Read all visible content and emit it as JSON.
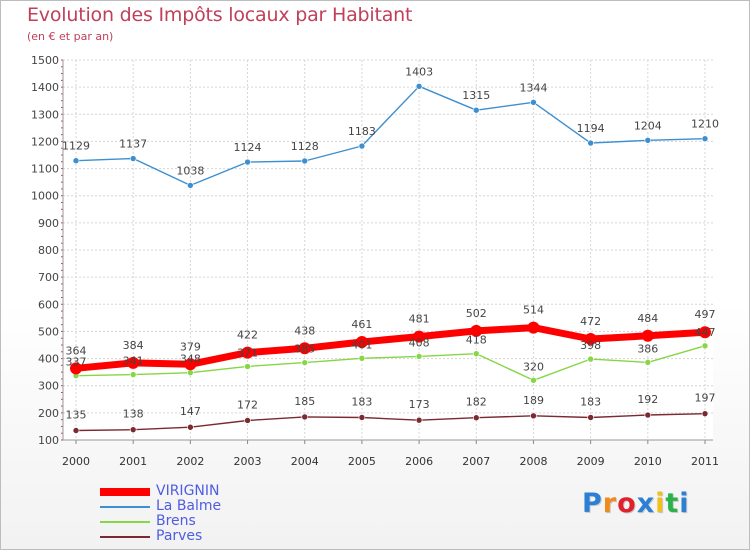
{
  "header": {
    "title": "Evolution des Impôts locaux par Habitant",
    "subtitle": "(en € et par an)"
  },
  "logo": {
    "letters": [
      "P",
      "r",
      "o",
      "x",
      "i",
      "t",
      "i"
    ],
    "colors": [
      "#2b7fd4",
      "#f08a1c",
      "#e0202a",
      "#2b7fd4",
      "#f0c020",
      "#2bb24a",
      "#2b7fd4"
    ]
  },
  "chart_data": {
    "type": "line",
    "x": [
      "2000",
      "2001",
      "2002",
      "2003",
      "2004",
      "2005",
      "2006",
      "2007",
      "2008",
      "2009",
      "2010",
      "2011"
    ],
    "ylim": [
      100,
      1500
    ],
    "yticks": [
      100,
      200,
      300,
      400,
      500,
      600,
      700,
      800,
      900,
      1000,
      1100,
      1200,
      1300,
      1400,
      1500
    ],
    "grid": true,
    "legend_position": "bottom-left",
    "series": [
      {
        "name": "VIRIGNIN",
        "color": "#ff0000",
        "values": [
          364,
          384,
          379,
          422,
          438,
          461,
          481,
          502,
          514,
          472,
          484,
          497
        ]
      },
      {
        "name": "La Balme",
        "color": "#3c8fd0",
        "values": [
          1129,
          1137,
          1038,
          1124,
          1128,
          1183,
          1403,
          1315,
          1344,
          1194,
          1204,
          1210
        ]
      },
      {
        "name": "Brens",
        "color": "#86d645",
        "values": [
          337,
          341,
          348,
          371,
          385,
          401,
          408,
          418,
          320,
          398,
          386,
          447
        ]
      },
      {
        "name": "Parves",
        "color": "#7a2a30",
        "values": [
          135,
          138,
          147,
          172,
          185,
          183,
          173,
          182,
          189,
          183,
          192,
          197
        ]
      }
    ]
  }
}
